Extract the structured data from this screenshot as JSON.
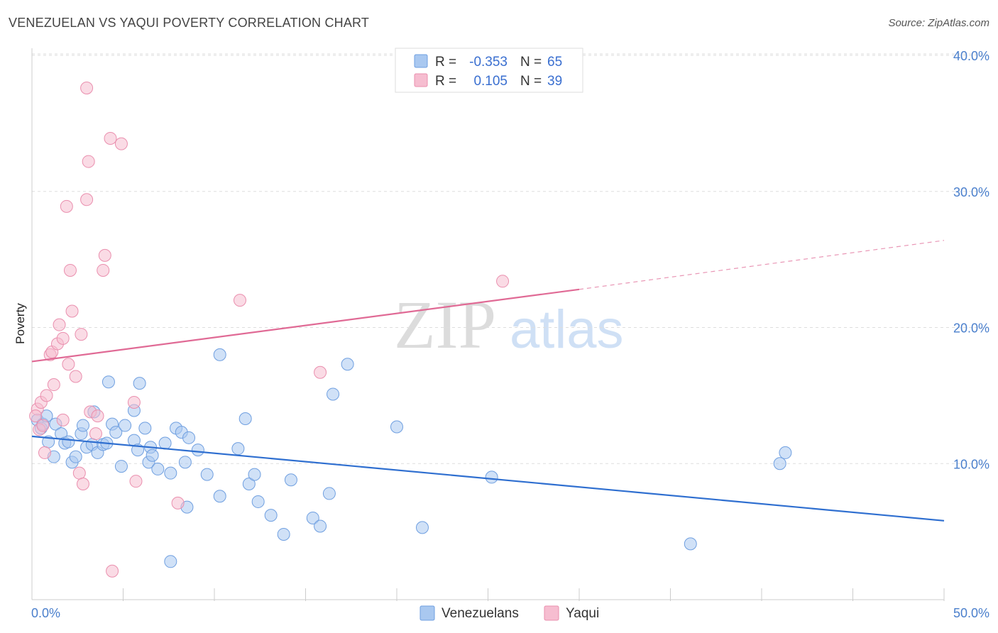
{
  "header": {
    "title": "VENEZUELAN VS YAQUI POVERTY CORRELATION CHART",
    "source": "Source: ZipAtlas.com"
  },
  "watermark": {
    "zip": "ZIP",
    "atlas": "atlas"
  },
  "colors": {
    "blue_fill": "#a9c8f0",
    "blue_stroke": "#6f9fe0",
    "blue_line": "#2f6fd0",
    "pink_fill": "#f6bdd0",
    "pink_stroke": "#ea8fae",
    "pink_line": "#e06a95",
    "grid": "#dddddd",
    "tick_text": "#4a7fcc"
  },
  "stats_legend": {
    "rows": [
      {
        "r_label": "R =",
        "r_value": "-0.353",
        "n_label": "N =",
        "n_value": "65"
      },
      {
        "r_label": "R =",
        "r_value": "0.105",
        "n_label": "N =",
        "n_value": "39"
      }
    ]
  },
  "chart_data": {
    "type": "scatter",
    "title": "VENEZUELAN VS YAQUI POVERTY CORRELATION CHART",
    "xlabel": "",
    "ylabel": "Poverty",
    "xlim": [
      0,
      50
    ],
    "ylim": [
      0,
      40
    ],
    "x_tick_labels": [
      "0.0%",
      "50.0%"
    ],
    "y_ticks": [
      10,
      20,
      30,
      40
    ],
    "y_tick_labels": [
      "10.0%",
      "20.0%",
      "30.0%",
      "40.0%"
    ],
    "grid": true,
    "legend_position": "bottom-center",
    "series": [
      {
        "name": "Venezuelans",
        "color": "#a9c8f0",
        "r": -0.353,
        "n": 65,
        "trend": {
          "x0": 0,
          "y0": 12.0,
          "x1": 50,
          "y1": 5.8
        },
        "points": [
          [
            0.3,
            13.2
          ],
          [
            0.5,
            12.6
          ],
          [
            0.6,
            12.9
          ],
          [
            0.8,
            13.5
          ],
          [
            0.9,
            11.6
          ],
          [
            1.2,
            10.5
          ],
          [
            1.3,
            12.9
          ],
          [
            1.6,
            12.2
          ],
          [
            1.8,
            11.5
          ],
          [
            2.0,
            11.6
          ],
          [
            2.2,
            10.1
          ],
          [
            2.4,
            10.5
          ],
          [
            2.7,
            12.2
          ],
          [
            2.8,
            12.8
          ],
          [
            3.0,
            11.2
          ],
          [
            3.3,
            11.4
          ],
          [
            3.4,
            13.8
          ],
          [
            3.6,
            10.8
          ],
          [
            3.9,
            11.4
          ],
          [
            4.1,
            11.5
          ],
          [
            4.2,
            16.0
          ],
          [
            4.4,
            12.9
          ],
          [
            4.6,
            12.3
          ],
          [
            4.9,
            9.8
          ],
          [
            5.1,
            12.8
          ],
          [
            5.6,
            11.7
          ],
          [
            5.6,
            13.9
          ],
          [
            5.8,
            11.0
          ],
          [
            5.9,
            15.9
          ],
          [
            6.2,
            12.6
          ],
          [
            6.4,
            10.1
          ],
          [
            6.5,
            11.2
          ],
          [
            6.6,
            10.6
          ],
          [
            6.9,
            9.6
          ],
          [
            7.3,
            11.5
          ],
          [
            7.6,
            9.3
          ],
          [
            7.9,
            12.6
          ],
          [
            8.2,
            12.3
          ],
          [
            8.4,
            10.1
          ],
          [
            8.6,
            11.9
          ],
          [
            8.5,
            6.8
          ],
          [
            9.1,
            11.0
          ],
          [
            9.6,
            9.2
          ],
          [
            10.3,
            7.6
          ],
          [
            10.3,
            18.0
          ],
          [
            11.3,
            11.1
          ],
          [
            11.7,
            13.3
          ],
          [
            11.9,
            8.5
          ],
          [
            12.2,
            9.2
          ],
          [
            12.4,
            7.2
          ],
          [
            13.1,
            6.2
          ],
          [
            13.8,
            4.8
          ],
          [
            14.2,
            8.8
          ],
          [
            15.4,
            6.0
          ],
          [
            15.8,
            5.4
          ],
          [
            16.3,
            7.8
          ],
          [
            16.5,
            15.1
          ],
          [
            17.3,
            17.3
          ],
          [
            20.0,
            12.7
          ],
          [
            21.4,
            5.3
          ],
          [
            25.2,
            9.0
          ],
          [
            36.1,
            4.1
          ],
          [
            41.0,
            10.0
          ],
          [
            41.3,
            10.8
          ],
          [
            7.6,
            2.8
          ]
        ]
      },
      {
        "name": "Yaqui",
        "color": "#f6bdd0",
        "r": 0.105,
        "n": 39,
        "trend": {
          "x0": 0,
          "y0": 17.5,
          "x1": 30,
          "y1": 22.8,
          "dash_x1": 50,
          "dash_y1": 26.4
        },
        "points": [
          [
            0.3,
            14.0
          ],
          [
            0.4,
            12.5
          ],
          [
            0.5,
            14.5
          ],
          [
            0.6,
            12.8
          ],
          [
            0.7,
            10.8
          ],
          [
            0.8,
            15.0
          ],
          [
            1.0,
            18.0
          ],
          [
            1.1,
            18.2
          ],
          [
            1.2,
            15.8
          ],
          [
            1.4,
            18.8
          ],
          [
            1.5,
            20.2
          ],
          [
            1.7,
            19.2
          ],
          [
            1.7,
            13.2
          ],
          [
            1.9,
            28.9
          ],
          [
            2.0,
            17.3
          ],
          [
            2.1,
            24.2
          ],
          [
            2.2,
            21.2
          ],
          [
            2.4,
            16.4
          ],
          [
            2.6,
            9.3
          ],
          [
            2.7,
            19.5
          ],
          [
            2.8,
            8.5
          ],
          [
            3.0,
            29.4
          ],
          [
            3.0,
            37.6
          ],
          [
            3.1,
            32.2
          ],
          [
            3.2,
            13.8
          ],
          [
            3.5,
            12.2
          ],
          [
            3.6,
            13.5
          ],
          [
            3.9,
            24.2
          ],
          [
            4.0,
            25.3
          ],
          [
            4.3,
            33.9
          ],
          [
            4.4,
            2.1
          ],
          [
            4.9,
            33.5
          ],
          [
            5.6,
            14.5
          ],
          [
            5.7,
            8.7
          ],
          [
            8.0,
            7.1
          ],
          [
            11.4,
            22.0
          ],
          [
            15.8,
            16.7
          ],
          [
            25.8,
            23.4
          ],
          [
            0.2,
            13.5
          ]
        ]
      }
    ]
  },
  "bottom_legend": {
    "items": [
      {
        "label": "Venezuelans"
      },
      {
        "label": "Yaqui"
      }
    ]
  }
}
